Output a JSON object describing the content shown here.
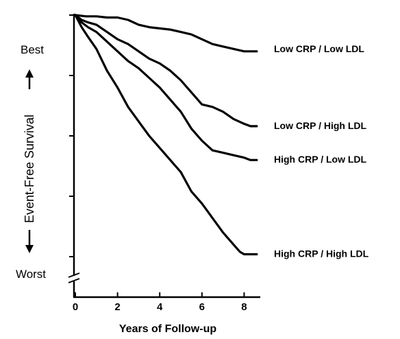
{
  "chart_data": {
    "type": "line",
    "title": "",
    "xlabel": "Years of Follow-up",
    "ylabel": "Event-Free Survival",
    "y_top_label": "Best",
    "y_bottom_label": "Worst",
    "xlim": [
      0,
      8.7
    ],
    "xticks": [
      0,
      2,
      4,
      6,
      8
    ],
    "ylim": [
      0,
      1
    ],
    "y_ticks_unlabeled": [
      0,
      0.25,
      0.5,
      0.75,
      1
    ],
    "y_axis_break": true,
    "grid": false,
    "line_color": "#000000",
    "series": [
      {
        "name": "Low CRP / Low LDL",
        "x": [
          0,
          0.5,
          1,
          1.5,
          2,
          2.5,
          3,
          3.5,
          4,
          4.5,
          5,
          5.5,
          6,
          6.5,
          7,
          7.5,
          8,
          8.3,
          8.6
        ],
        "y": [
          1.0,
          0.995,
          0.995,
          0.99,
          0.99,
          0.98,
          0.96,
          0.95,
          0.945,
          0.94,
          0.93,
          0.92,
          0.9,
          0.88,
          0.87,
          0.86,
          0.85,
          0.85,
          0.85
        ]
      },
      {
        "name": "Low CRP / High LDL",
        "x": [
          0,
          0.3,
          0.6,
          1,
          1.5,
          2,
          2.5,
          3,
          3.5,
          4,
          4.5,
          5,
          5.5,
          6,
          6.5,
          7,
          7.5,
          8,
          8.3,
          8.6
        ],
        "y": [
          1.0,
          0.98,
          0.97,
          0.96,
          0.93,
          0.9,
          0.88,
          0.85,
          0.82,
          0.8,
          0.77,
          0.73,
          0.68,
          0.63,
          0.62,
          0.6,
          0.57,
          0.55,
          0.54,
          0.54
        ]
      },
      {
        "name": "High CRP / Low LDL",
        "x": [
          0,
          0.3,
          0.6,
          1,
          1.5,
          2,
          2.5,
          3,
          3.5,
          4,
          4.5,
          5,
          5.5,
          6,
          6.5,
          7,
          7.5,
          8,
          8.3,
          8.6
        ],
        "y": [
          1.0,
          0.97,
          0.95,
          0.93,
          0.89,
          0.85,
          0.81,
          0.78,
          0.74,
          0.7,
          0.65,
          0.6,
          0.53,
          0.48,
          0.44,
          0.43,
          0.42,
          0.41,
          0.4,
          0.4
        ]
      },
      {
        "name": "High CRP / High LDL",
        "x": [
          0,
          0.3,
          0.6,
          1,
          1.5,
          2,
          2.5,
          3,
          3.5,
          4,
          4.5,
          5,
          5.5,
          6,
          6.5,
          7,
          7.5,
          7.8,
          8,
          8.3,
          8.6
        ],
        "y": [
          1.0,
          0.95,
          0.91,
          0.86,
          0.77,
          0.7,
          0.62,
          0.56,
          0.5,
          0.45,
          0.4,
          0.35,
          0.27,
          0.22,
          0.16,
          0.1,
          0.05,
          0.02,
          0.01,
          0.01,
          0.01
        ]
      }
    ]
  }
}
